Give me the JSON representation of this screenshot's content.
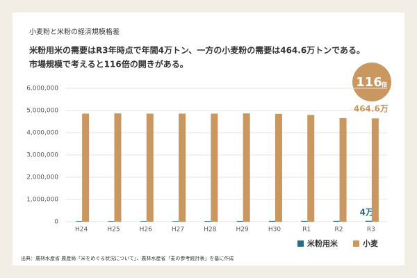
{
  "chart_data": {
    "type": "bar",
    "title": "小麦粉と米粉の経済規模格差",
    "subtitle": [
      "米粉用米の需要はR3年時点で年間4万トン、一方の小麦粉の需要は464.6万トンである。",
      "市場規模で考えると116倍の開きがある。"
    ],
    "categories": [
      "H24",
      "H25",
      "H26",
      "H27",
      "H28",
      "H29",
      "H30",
      "R1",
      "R2",
      "R3"
    ],
    "series": [
      {
        "name": "米粉用米",
        "color": "#2a6a85",
        "values": [
          25000,
          25000,
          23000,
          23000,
          28000,
          31000,
          35000,
          35000,
          36000,
          40000
        ],
        "value_labels": [
          null,
          null,
          null,
          null,
          null,
          null,
          null,
          null,
          null,
          "4万"
        ]
      },
      {
        "name": "小麦",
        "color": "#c9975f",
        "values": [
          4860000,
          4870000,
          4860000,
          4860000,
          4860000,
          4870000,
          4850000,
          4800000,
          4660000,
          4646000
        ],
        "value_labels": [
          null,
          null,
          null,
          null,
          null,
          null,
          null,
          null,
          null,
          "464.6万"
        ]
      }
    ],
    "ylim": [
      0,
      6000000
    ],
    "yticks": [
      0,
      {
        "value": 1000000,
        "label": "1,000,000"
      },
      {
        "value": 2000000,
        "label": "2,000,000"
      },
      {
        "value": 3000000,
        "label": "3,000,000"
      },
      {
        "value": 4000000,
        "label": "4,000,000"
      },
      {
        "value": 5000000,
        "label": "5,000,000"
      },
      {
        "value": 6000000,
        "label": "6,000,000"
      }
    ],
    "grid": true,
    "annotations": [
      "116",
      "倍"
    ],
    "source": "出典：農林水産省 農産局「米をめぐる状況について」、農林水産省「麦の参考統計表」を基に作成"
  }
}
